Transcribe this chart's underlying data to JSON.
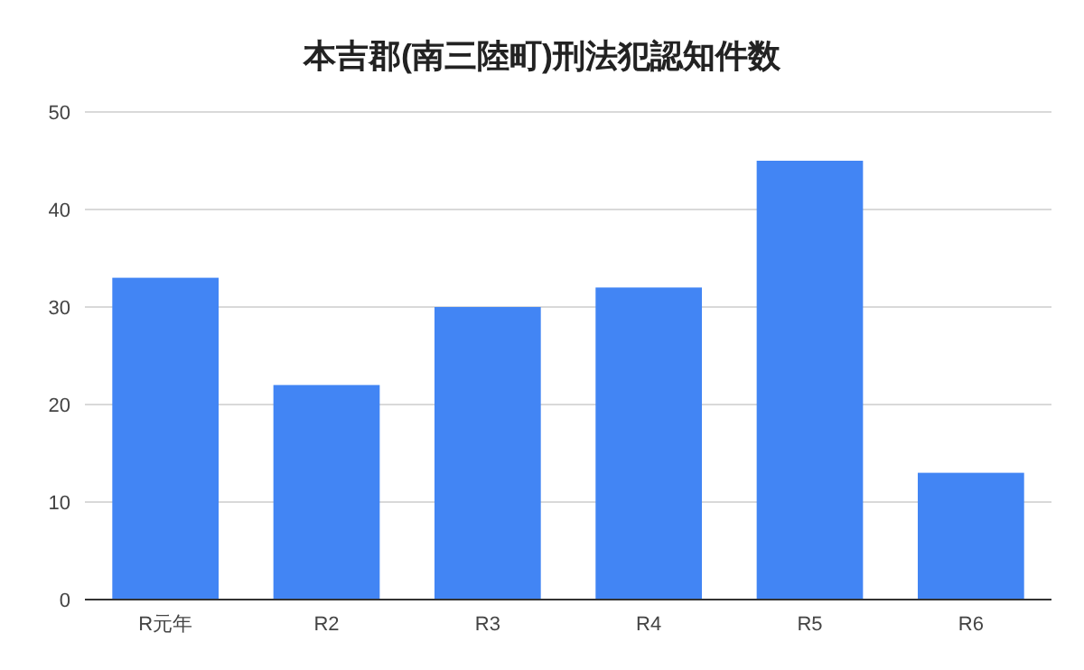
{
  "chart_data": {
    "type": "bar",
    "title": "本吉郡(南三陸町)刑法犯認知件数",
    "categories": [
      "R元年",
      "R2",
      "R3",
      "R4",
      "R5",
      "R6"
    ],
    "values": [
      33,
      22,
      30,
      32,
      45,
      13
    ],
    "color": "#4285f4",
    "ylim": [
      0,
      50
    ],
    "yticks": [
      0,
      10,
      20,
      30,
      40,
      50
    ],
    "grid": "y"
  }
}
